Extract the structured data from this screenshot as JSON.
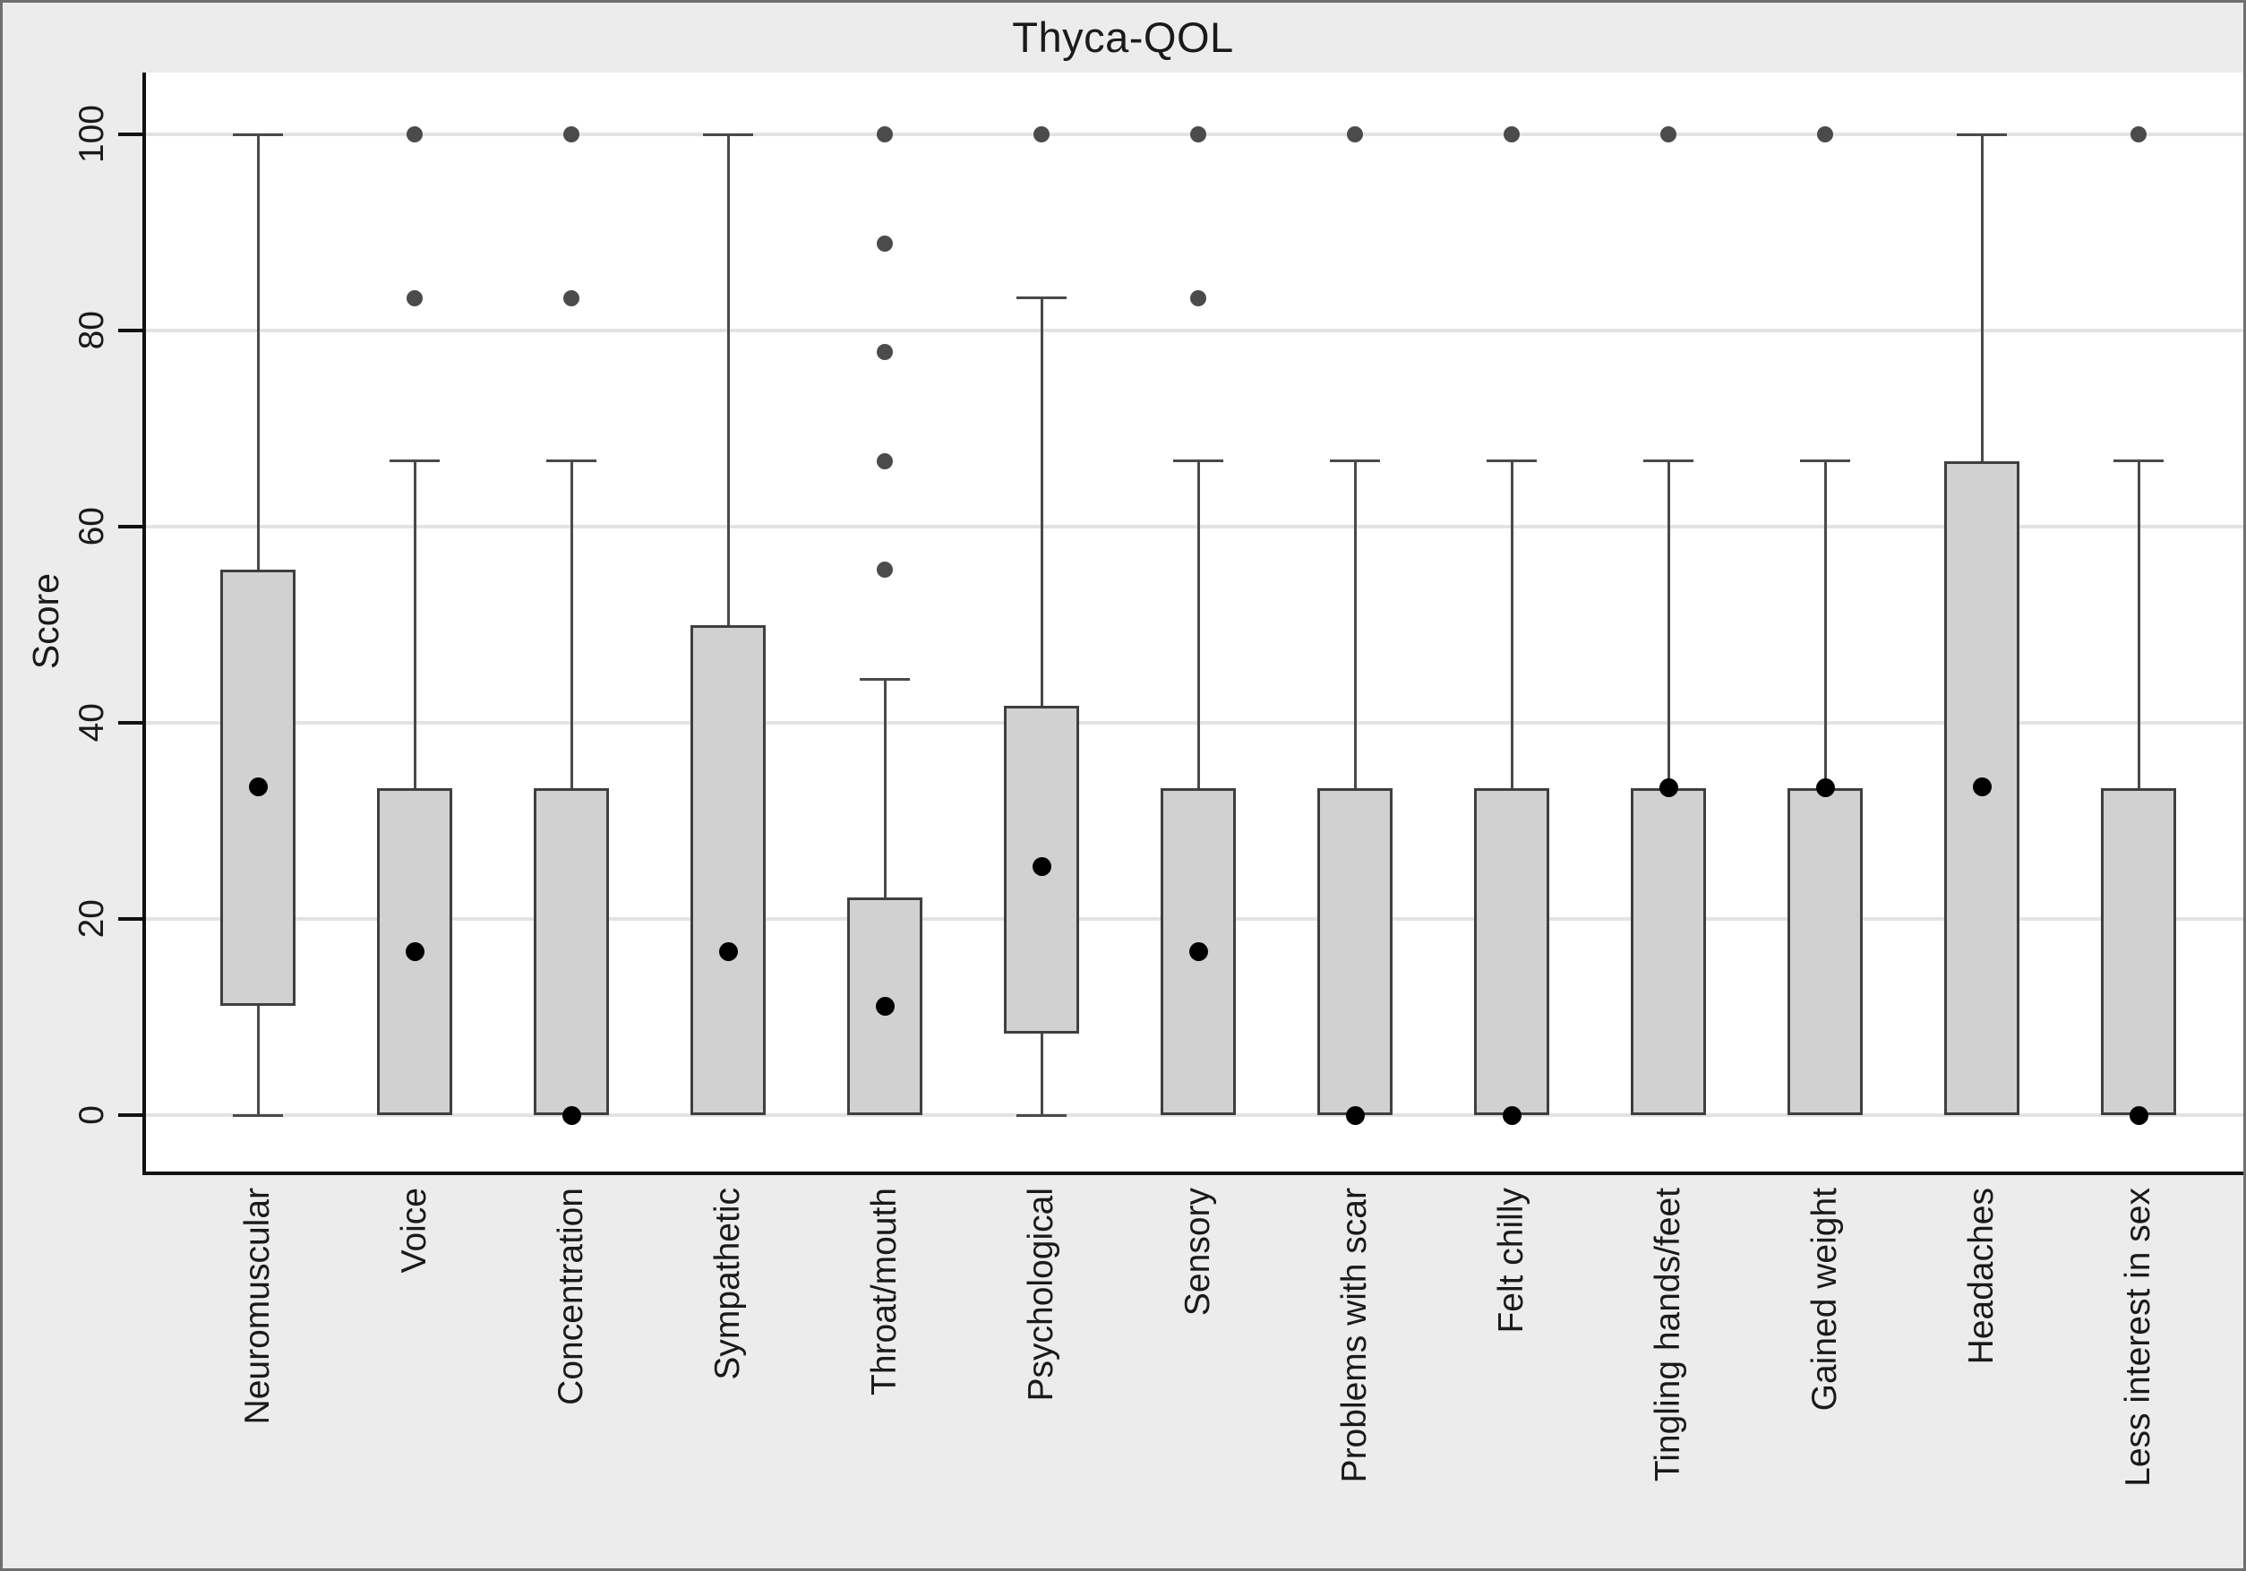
{
  "title": "Thyca-QOL",
  "ylabel": "Score",
  "colors": {
    "figure_background": "#ececec",
    "plot_background": "#ffffff",
    "gridline": "#e3e3e3",
    "axis": "#111111",
    "box_fill": "#d1d1d1",
    "box_border": "#3f3f3f",
    "whisker": "#4a4a4a",
    "outlier_dot": "#4b4b4b",
    "mean_dot": "#000000",
    "text": "#1a1a1a"
  },
  "chart_data": {
    "type": "box",
    "title": "Thyca-QOL",
    "xlabel": "",
    "ylabel": "Score",
    "ylim": [
      -5.8,
      106.3
    ],
    "yticks": [
      0,
      20,
      40,
      60,
      80,
      100
    ],
    "grid": "horizontal",
    "legend": "none",
    "categories": [
      "Neuromuscular",
      "Voice",
      "Concentration",
      "Sympathetic",
      "Throat/mouth",
      "Psychological",
      "Sensory",
      "Problems with scar",
      "Felt chilly",
      "Tingling hands/feet",
      "Gained weight",
      "Headaches",
      "Less interest in sex"
    ],
    "series": [
      {
        "name": "Neuromuscular",
        "q1": 11.1,
        "q3": 55.6,
        "marker": 33.5,
        "whisker_low": 0,
        "whisker_high": 100,
        "outliers": []
      },
      {
        "name": "Voice",
        "q1": 0,
        "q3": 33.3,
        "marker": 16.7,
        "whisker_low": null,
        "whisker_high": 66.7,
        "outliers": [
          83.3,
          100
        ]
      },
      {
        "name": "Concentration",
        "q1": 0,
        "q3": 33.3,
        "marker": 0,
        "whisker_low": null,
        "whisker_high": 66.7,
        "outliers": [
          83.3,
          100
        ]
      },
      {
        "name": "Sympathetic",
        "q1": 0,
        "q3": 50,
        "marker": 16.7,
        "whisker_low": null,
        "whisker_high": 100,
        "outliers": []
      },
      {
        "name": "Throat/mouth",
        "q1": 0,
        "q3": 22.2,
        "marker": 11.1,
        "whisker_low": null,
        "whisker_high": 44.4,
        "outliers": [
          55.6,
          66.7,
          77.8,
          88.9,
          100
        ]
      },
      {
        "name": "Psychological",
        "q1": 8.3,
        "q3": 41.7,
        "marker": 25.3,
        "whisker_low": 0,
        "whisker_high": 83.3,
        "outliers": [
          100
        ]
      },
      {
        "name": "Sensory",
        "q1": 0,
        "q3": 33.3,
        "marker": 16.7,
        "whisker_low": null,
        "whisker_high": 66.7,
        "outliers": [
          83.3,
          100
        ]
      },
      {
        "name": "Problems with scar",
        "q1": 0,
        "q3": 33.3,
        "marker": 0,
        "whisker_low": null,
        "whisker_high": 66.7,
        "outliers": [
          100
        ]
      },
      {
        "name": "Felt chilly",
        "q1": 0,
        "q3": 33.3,
        "marker": 0,
        "whisker_low": null,
        "whisker_high": 66.7,
        "outliers": [
          100
        ]
      },
      {
        "name": "Tingling hands/feet",
        "q1": 0,
        "q3": 33.3,
        "marker": 33.4,
        "whisker_low": null,
        "whisker_high": 66.7,
        "outliers": [
          100
        ]
      },
      {
        "name": "Gained weight",
        "q1": 0,
        "q3": 33.3,
        "marker": 33.4,
        "whisker_low": null,
        "whisker_high": 66.7,
        "outliers": [
          100
        ]
      },
      {
        "name": "Headaches",
        "q1": 0,
        "q3": 66.7,
        "marker": 33.5,
        "whisker_low": null,
        "whisker_high": 100,
        "outliers": []
      },
      {
        "name": "Less interest in sex",
        "q1": 0,
        "q3": 33.3,
        "marker": 0,
        "whisker_low": null,
        "whisker_high": 66.7,
        "outliers": [
          100
        ]
      }
    ]
  }
}
